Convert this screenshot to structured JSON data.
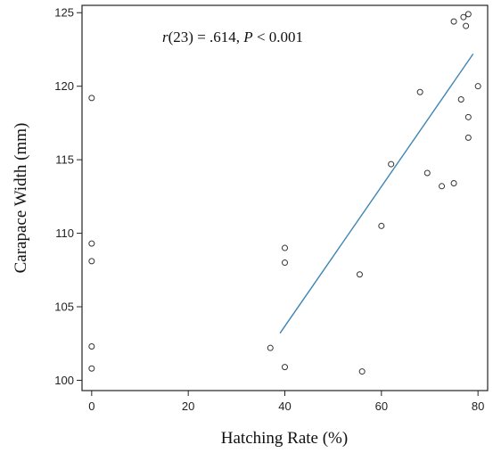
{
  "chart_data": {
    "type": "scatter",
    "xlabel": "Hatching Rate (%)",
    "ylabel": "Carapace Width (mm)",
    "xlim": [
      -2,
      82
    ],
    "ylim": [
      99.3,
      125.5
    ],
    "xticks": [
      0,
      20,
      40,
      60,
      80
    ],
    "yticks": [
      100,
      105,
      110,
      115,
      120,
      125
    ],
    "annotation": {
      "r_italic": "r",
      "r_rest": "(23) = .614, ",
      "p_italic": "P",
      "p_rest": " < 0.001"
    },
    "points": [
      {
        "x": 0,
        "y": 119.2
      },
      {
        "x": 0,
        "y": 109.3
      },
      {
        "x": 0,
        "y": 108.1
      },
      {
        "x": 0,
        "y": 102.3
      },
      {
        "x": 0,
        "y": 100.8
      },
      {
        "x": 37,
        "y": 102.2
      },
      {
        "x": 40,
        "y": 109.0
      },
      {
        "x": 40,
        "y": 108.0
      },
      {
        "x": 40,
        "y": 100.9
      },
      {
        "x": 55.5,
        "y": 107.2
      },
      {
        "x": 56,
        "y": 100.6
      },
      {
        "x": 60,
        "y": 110.5
      },
      {
        "x": 62,
        "y": 114.7
      },
      {
        "x": 68,
        "y": 119.6
      },
      {
        "x": 69.5,
        "y": 114.1
      },
      {
        "x": 72.5,
        "y": 113.2
      },
      {
        "x": 75,
        "y": 113.4
      },
      {
        "x": 75,
        "y": 124.4
      },
      {
        "x": 76.5,
        "y": 119.1
      },
      {
        "x": 77,
        "y": 124.7
      },
      {
        "x": 77.5,
        "y": 124.1
      },
      {
        "x": 78,
        "y": 124.9
      },
      {
        "x": 78,
        "y": 117.9
      },
      {
        "x": 78,
        "y": 116.5
      },
      {
        "x": 80,
        "y": 120.0
      }
    ],
    "trendline": {
      "x": [
        39,
        79
      ],
      "y": [
        103.2,
        122.2
      ],
      "color": "#3f86b4"
    },
    "point_color": "#333333",
    "grid": false
  }
}
